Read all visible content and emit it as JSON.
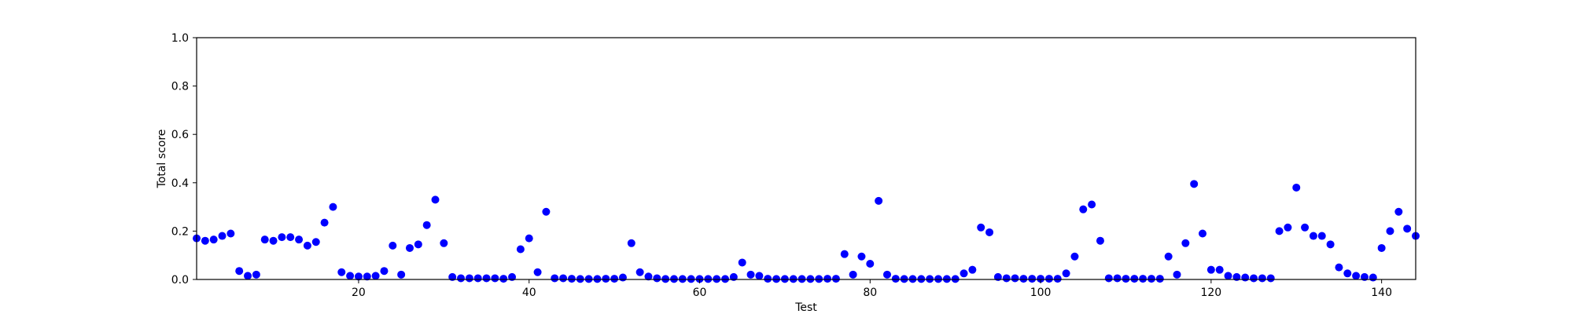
{
  "chart_data": {
    "type": "scatter",
    "title": "",
    "xlabel": "Test",
    "ylabel": "Total score",
    "xlim": [
      1,
      144
    ],
    "ylim": [
      0,
      1.0
    ],
    "x_ticks": [
      20,
      40,
      60,
      80,
      100,
      120,
      140
    ],
    "y_ticks": [
      "0.0",
      "0.2",
      "0.4",
      "0.6",
      "0.8",
      "1.0"
    ],
    "grid": false,
    "marker_color": "#0000ff",
    "series": [
      {
        "x": [
          1,
          2,
          3,
          4,
          5,
          6,
          7,
          8,
          9,
          10,
          11,
          12,
          13,
          14,
          15,
          16,
          17,
          18,
          19,
          20,
          21,
          22,
          23,
          24,
          25,
          26,
          27,
          28,
          29,
          30,
          31,
          32,
          33,
          34,
          35,
          36,
          37,
          38,
          39,
          40,
          41,
          42,
          43,
          44,
          45,
          46,
          47,
          48,
          49,
          50,
          51,
          52,
          53,
          54,
          55,
          56,
          57,
          58,
          59,
          60,
          61,
          62,
          63,
          64,
          65,
          66,
          67,
          68,
          69,
          70,
          71,
          72,
          73,
          74,
          75,
          76,
          77,
          78,
          79,
          80,
          81,
          82,
          83,
          84,
          85,
          86,
          87,
          88,
          89,
          90,
          91,
          92,
          93,
          94,
          95,
          96,
          97,
          98,
          99,
          100,
          101,
          102,
          103,
          104,
          105,
          106,
          107,
          108,
          109,
          110,
          111,
          112,
          113,
          114,
          115,
          116,
          117,
          118,
          119,
          120,
          121,
          122,
          123,
          124,
          125,
          126,
          127,
          128,
          129,
          130,
          131,
          132,
          133,
          134,
          135,
          136,
          137,
          138,
          139,
          140,
          141,
          142,
          143,
          144
        ],
        "y": [
          0.17,
          0.16,
          0.165,
          0.18,
          0.19,
          0.035,
          0.015,
          0.02,
          0.165,
          0.16,
          0.175,
          0.175,
          0.165,
          0.14,
          0.155,
          0.235,
          0.3,
          0.03,
          0.015,
          0.012,
          0.012,
          0.015,
          0.035,
          0.14,
          0.02,
          0.13,
          0.145,
          0.225,
          0.33,
          0.15,
          0.01,
          0.005,
          0.005,
          0.005,
          0.005,
          0.005,
          0.003,
          0.01,
          0.125,
          0.17,
          0.03,
          0.28,
          0.005,
          0.005,
          0.003,
          0.002,
          0.002,
          0.002,
          0.003,
          0.003,
          0.008,
          0.15,
          0.03,
          0.012,
          0.005,
          0.002,
          0.002,
          0.002,
          0.002,
          0.002,
          0.002,
          0.002,
          0.002,
          0.01,
          0.07,
          0.02,
          0.015,
          0.003,
          0.002,
          0.002,
          0.002,
          0.002,
          0.002,
          0.002,
          0.003,
          0.003,
          0.105,
          0.02,
          0.095,
          0.065,
          0.325,
          0.02,
          0.003,
          0.002,
          0.002,
          0.002,
          0.002,
          0.002,
          0.002,
          0.002,
          0.025,
          0.04,
          0.215,
          0.195,
          0.01,
          0.005,
          0.005,
          0.003,
          0.003,
          0.003,
          0.003,
          0.003,
          0.025,
          0.095,
          0.29,
          0.31,
          0.16,
          0.005,
          0.005,
          0.003,
          0.003,
          0.003,
          0.003,
          0.003,
          0.095,
          0.02,
          0.15,
          0.395,
          0.19,
          0.04,
          0.04,
          0.015,
          0.01,
          0.008,
          0.005,
          0.005,
          0.005,
          0.2,
          0.215,
          0.38,
          0.215,
          0.18,
          0.18,
          0.145,
          0.05,
          0.025,
          0.015,
          0.01,
          0.008,
          0.13,
          0.2,
          0.28,
          0.21,
          0.18
        ]
      }
    ]
  }
}
